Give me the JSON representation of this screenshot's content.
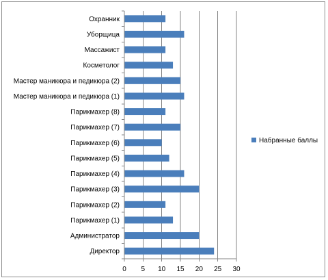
{
  "chart_data": {
    "type": "bar",
    "orientation": "horizontal",
    "categories": [
      "Директор",
      "Администратор",
      "Парикмахер (1)",
      "Парикмахер (2)",
      "Парикмахер (3)",
      "Парикмахер (4)",
      "Парикмахер (5)",
      "Парикмахер (6)",
      "Парикмахер (7)",
      "Парикмахер (8)",
      "Мастер маникюра и педикюра (1)",
      "Мастер маникюра и педикюра (2)",
      "Косметолог",
      "Массажист",
      "Уборщица",
      "Охранник"
    ],
    "series": [
      {
        "name": "Набранные баллы",
        "values": [
          24,
          20,
          13,
          11,
          20,
          16,
          12,
          10,
          15,
          11,
          16,
          15,
          13,
          11,
          16,
          11
        ],
        "color": "#4a7ebb"
      }
    ],
    "xlim": [
      0,
      30
    ],
    "xticks": [
      0,
      5,
      10,
      15,
      20,
      25,
      30
    ],
    "grid": "vertical-major",
    "legend": "right"
  }
}
